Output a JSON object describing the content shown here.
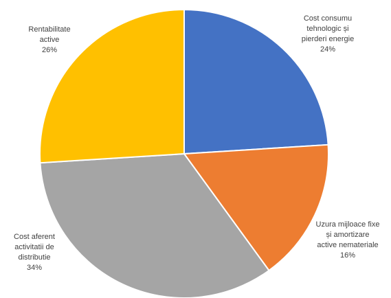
{
  "chart_data": {
    "type": "pie",
    "slices": [
      {
        "label_lines": [
          "Cost consumu",
          "tehnologic și",
          "pierderi energie"
        ],
        "value": 24,
        "value_label": "24%",
        "color": "#4472C4"
      },
      {
        "label_lines": [
          "Uzura mijloace fixe",
          "și amortizare",
          "active nemateriale"
        ],
        "value": 16,
        "value_label": "16%",
        "color": "#ED7D31"
      },
      {
        "label_lines": [
          "Cost aferent",
          "activitatii  de",
          "distributie"
        ],
        "value": 34,
        "value_label": "34%",
        "color": "#A5A5A5"
      },
      {
        "label_lines": [
          "Rentabilitate",
          "active"
        ],
        "value": 26,
        "value_label": "26%",
        "color": "#FFC000"
      }
    ]
  }
}
